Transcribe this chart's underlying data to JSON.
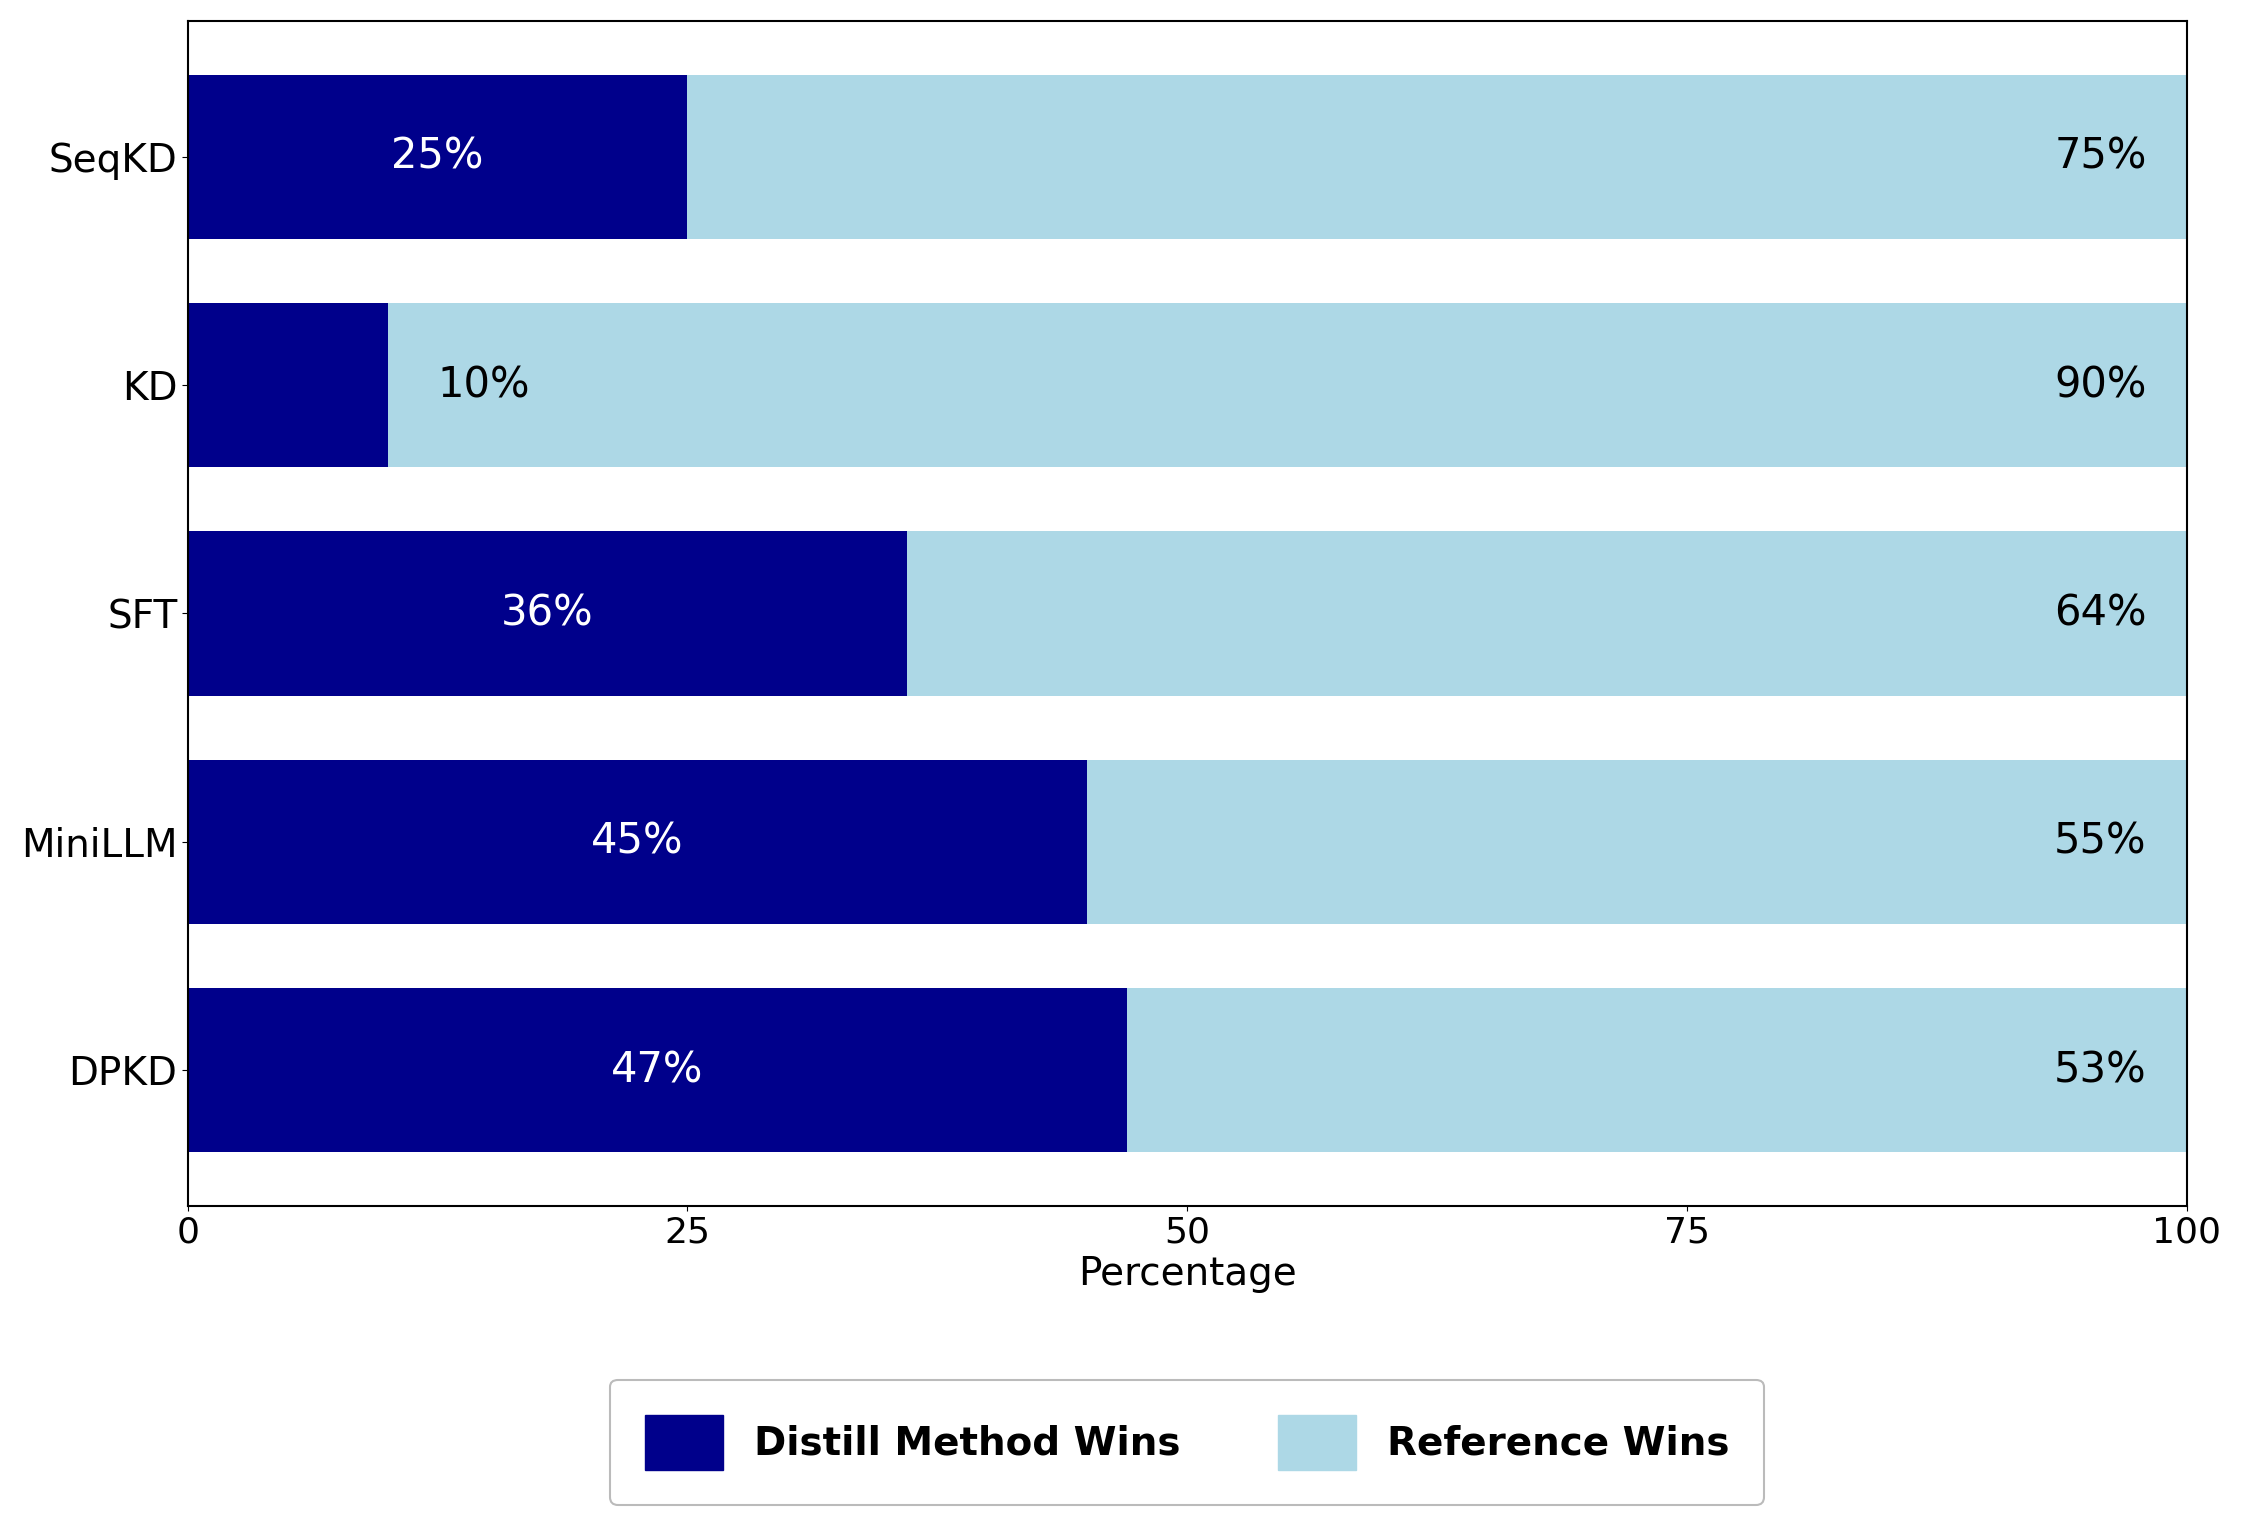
{
  "categories": [
    "SeqKD",
    "KD",
    "SFT",
    "MiniLLM",
    "DPKD"
  ],
  "distill_wins": [
    25,
    10,
    36,
    45,
    47
  ],
  "reference_wins": [
    75,
    90,
    64,
    55,
    53
  ],
  "distill_color": "#00008B",
  "reference_color": "#ADD8E6",
  "xlabel": "Percentage",
  "xlim": [
    0,
    100
  ],
  "xticks": [
    0,
    25,
    50,
    75,
    100
  ],
  "legend_labels": [
    "Distill Method Wins",
    "Reference Wins"
  ],
  "label_fontsize": 28,
  "tick_fontsize": 26,
  "bar_label_fontsize": 30,
  "legend_fontsize": 28,
  "bar_height": 0.72
}
